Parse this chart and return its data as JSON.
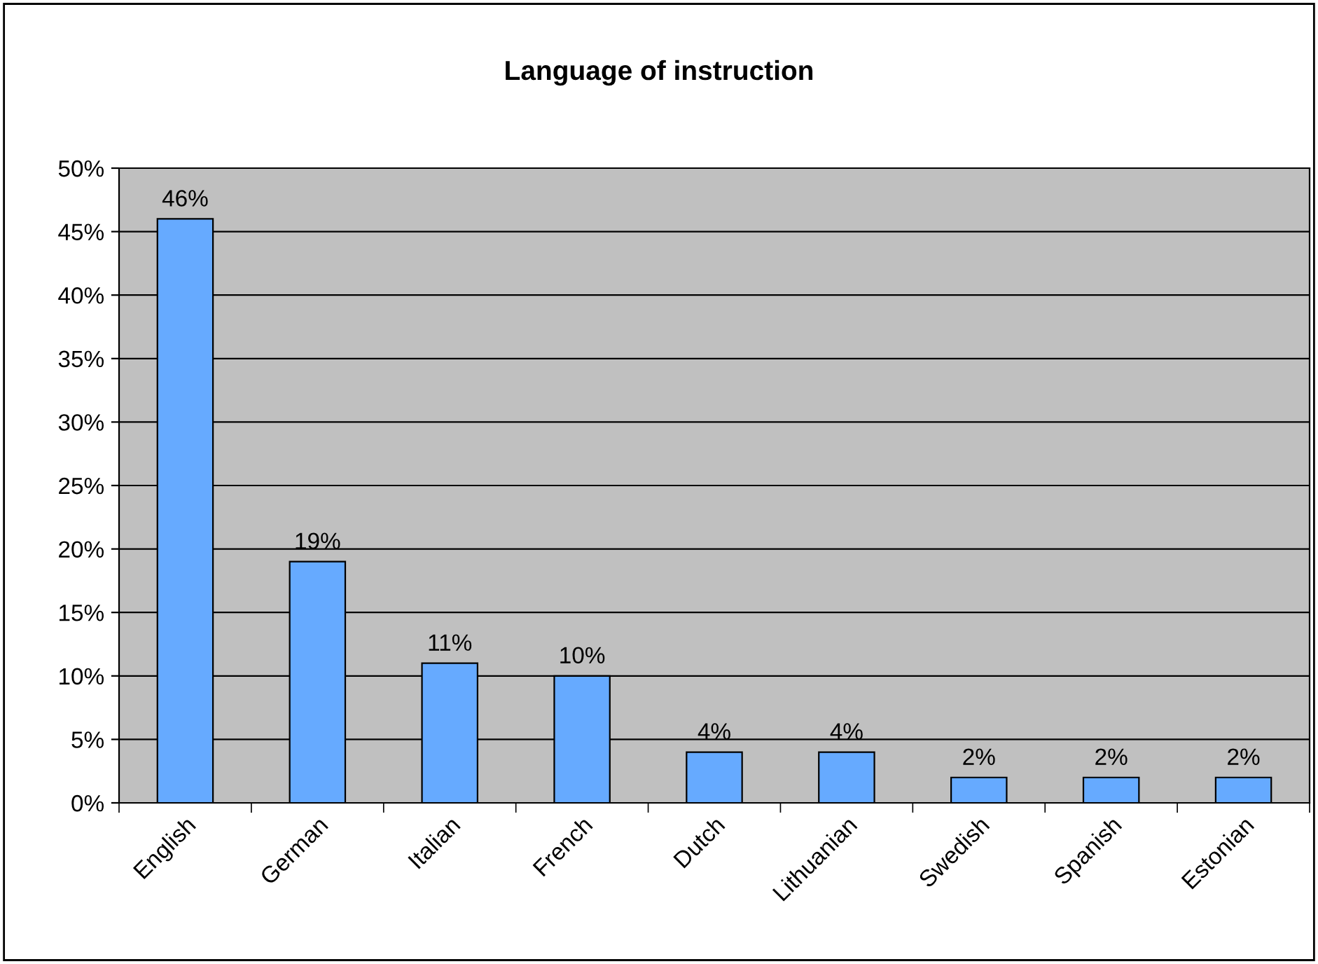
{
  "chart_data": {
    "type": "bar",
    "title": "Language of instruction",
    "categories": [
      "English",
      "German",
      "Italian",
      "French",
      "Dutch",
      "Lithuanian",
      "Swedish",
      "Spanish",
      "Estonian"
    ],
    "values": [
      46,
      19,
      11,
      10,
      4,
      4,
      2,
      2,
      2
    ],
    "value_labels": [
      "46%",
      "19%",
      "11%",
      "10%",
      "4%",
      "4%",
      "2%",
      "2%",
      "2%"
    ],
    "color": "#66aaff",
    "ylim": [
      0,
      50
    ],
    "yticks": [
      {
        "value": 0,
        "label": "0%"
      },
      {
        "value": 5,
        "label": "5%"
      },
      {
        "value": 10,
        "label": "10%"
      },
      {
        "value": 15,
        "label": "15%"
      },
      {
        "value": 20,
        "label": "20%"
      },
      {
        "value": 25,
        "label": "25%"
      },
      {
        "value": 30,
        "label": "30%"
      },
      {
        "value": 35,
        "label": "35%"
      },
      {
        "value": 40,
        "label": "40%"
      },
      {
        "value": 45,
        "label": "45%"
      },
      {
        "value": 50,
        "label": "50%"
      }
    ],
    "grid": "y",
    "legend": false
  }
}
